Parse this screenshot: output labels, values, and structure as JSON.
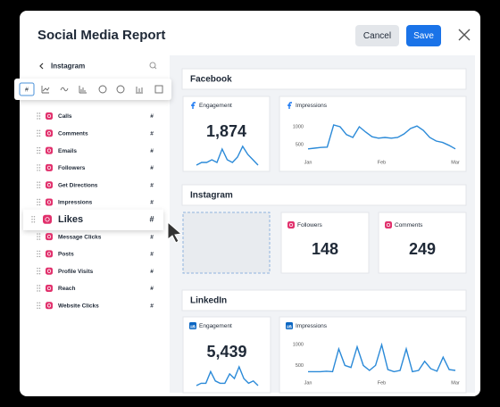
{
  "header": {
    "title": "Social Media Report",
    "cancel": "Cancel",
    "save": "Save"
  },
  "sidebar": {
    "title": "Instagram",
    "metric_type": "#",
    "metrics": [
      "Calls",
      "Comments",
      "Emails",
      "Followers",
      "Get Directions",
      "Impressions",
      "Likes",
      "Message Clicks",
      "Posts",
      "Profile Visits",
      "Reach",
      "Website Clicks"
    ],
    "dragged": 6
  },
  "sections": [
    {
      "title": "Facebook",
      "platform": "facebook",
      "cards": [
        {
          "type": "metric",
          "label": "Engagement",
          "value": "1,874",
          "spark": [
            3,
            4,
            4,
            5,
            4,
            9,
            5,
            4,
            6,
            10,
            7,
            5,
            3
          ]
        },
        {
          "type": "line",
          "label": "Impressions",
          "values": [
            380,
            400,
            420,
            430,
            1050,
            1000,
            780,
            700,
            1000,
            850,
            720,
            680,
            700,
            680,
            700,
            800,
            950,
            1020,
            900,
            700,
            600,
            560,
            480,
            380
          ],
          "ylim": [
            200,
            1300
          ],
          "yticks": [
            1000,
            500
          ],
          "x_labels": [
            "Jan",
            "Feb",
            "Mar"
          ]
        }
      ]
    },
    {
      "title": "Instagram",
      "platform": "instagram",
      "cards": [
        {
          "type": "placeholder"
        },
        {
          "type": "metric",
          "label": "Followers",
          "value": "148"
        },
        {
          "type": "metric",
          "label": "Comments",
          "value": "249"
        }
      ]
    },
    {
      "title": "LinkedIn",
      "platform": "linkedin",
      "cards": [
        {
          "type": "metric",
          "label": "Engagement",
          "value": "5,439",
          "spark": [
            3,
            4,
            4,
            9,
            5,
            4,
            4,
            8,
            6,
            11,
            6,
            4,
            5,
            3
          ]
        },
        {
          "type": "line",
          "label": "Impressions",
          "values": [
            350,
            350,
            350,
            360,
            350,
            900,
            500,
            450,
            950,
            500,
            380,
            500,
            1000,
            400,
            350,
            380,
            900,
            350,
            380,
            600,
            420,
            360,
            700,
            400,
            380
          ],
          "ylim": [
            250,
            1200
          ],
          "yticks": [
            1000,
            500
          ],
          "x_labels": [
            "Jan",
            "Feb",
            "Mar"
          ]
        }
      ]
    }
  ]
}
